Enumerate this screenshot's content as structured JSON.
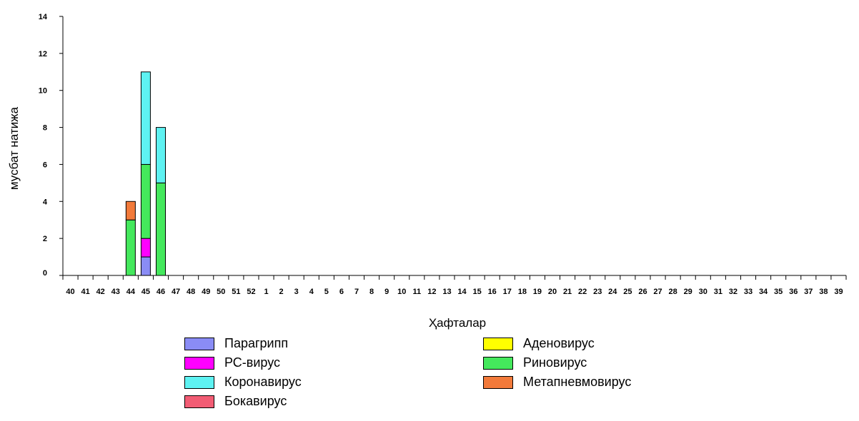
{
  "chart_data": {
    "type": "bar",
    "stacked": true,
    "title": "",
    "xlabel": "Ҳафталар",
    "ylabel": "мусбат натижа",
    "ylim": [
      0,
      14
    ],
    "yticks": [
      "0",
      "2",
      "4",
      "6",
      "8",
      "10",
      "12",
      "14"
    ],
    "grid": false,
    "legend_position": "bottom",
    "categories": [
      "40",
      "41",
      "42",
      "43",
      "44",
      "45",
      "46",
      "47",
      "48",
      "49",
      "50",
      "51",
      "52",
      "1",
      "2",
      "3",
      "4",
      "5",
      "6",
      "7",
      "8",
      "9",
      "10",
      "11",
      "12",
      "13",
      "14",
      "15",
      "16",
      "17",
      "18",
      "19",
      "20",
      "21",
      "22",
      "23",
      "24",
      "25",
      "26",
      "27",
      "28",
      "29",
      "30",
      "31",
      "32",
      "33",
      "34",
      "35",
      "36",
      "37",
      "38",
      "39"
    ],
    "series": [
      {
        "name": "Парагрипп",
        "color": "#8a8cf5",
        "values": [
          0,
          0,
          0,
          0,
          0,
          1,
          0,
          0,
          0,
          0,
          0,
          0,
          0,
          0,
          0,
          0,
          0,
          0,
          0,
          0,
          0,
          0,
          0,
          0,
          0,
          0,
          0,
          0,
          0,
          0,
          0,
          0,
          0,
          0,
          0,
          0,
          0,
          0,
          0,
          0,
          0,
          0,
          0,
          0,
          0,
          0,
          0,
          0,
          0,
          0,
          0,
          0
        ]
      },
      {
        "name": "РС-вирус",
        "color": "#ff00ff",
        "values": [
          0,
          0,
          0,
          0,
          0,
          1,
          0,
          0,
          0,
          0,
          0,
          0,
          0,
          0,
          0,
          0,
          0,
          0,
          0,
          0,
          0,
          0,
          0,
          0,
          0,
          0,
          0,
          0,
          0,
          0,
          0,
          0,
          0,
          0,
          0,
          0,
          0,
          0,
          0,
          0,
          0,
          0,
          0,
          0,
          0,
          0,
          0,
          0,
          0,
          0,
          0,
          0
        ]
      },
      {
        "name": "Коронавирус",
        "color": "#5ef2f2",
        "values": [
          0,
          0,
          0,
          0,
          0,
          5,
          3,
          0,
          0,
          0,
          0,
          0,
          0,
          0,
          0,
          0,
          0,
          0,
          0,
          0,
          0,
          0,
          0,
          0,
          0,
          0,
          0,
          0,
          0,
          0,
          0,
          0,
          0,
          0,
          0,
          0,
          0,
          0,
          0,
          0,
          0,
          0,
          0,
          0,
          0,
          0,
          0,
          0,
          0,
          0,
          0,
          0
        ]
      },
      {
        "name": "Бокавирус",
        "color": "#f25c74",
        "values": [
          0,
          0,
          0,
          0,
          0,
          0,
          0,
          0,
          0,
          0,
          0,
          0,
          0,
          0,
          0,
          0,
          0,
          0,
          0,
          0,
          0,
          0,
          0,
          0,
          0,
          0,
          0,
          0,
          0,
          0,
          0,
          0,
          0,
          0,
          0,
          0,
          0,
          0,
          0,
          0,
          0,
          0,
          0,
          0,
          0,
          0,
          0,
          0,
          0,
          0,
          0,
          0
        ]
      },
      {
        "name": "Аденовирус",
        "color": "#ffff00",
        "values": [
          0,
          0,
          0,
          0,
          0,
          0,
          0,
          0,
          0,
          0,
          0,
          0,
          0,
          0,
          0,
          0,
          0,
          0,
          0,
          0,
          0,
          0,
          0,
          0,
          0,
          0,
          0,
          0,
          0,
          0,
          0,
          0,
          0,
          0,
          0,
          0,
          0,
          0,
          0,
          0,
          0,
          0,
          0,
          0,
          0,
          0,
          0,
          0,
          0,
          0,
          0,
          0
        ]
      },
      {
        "name": "Риновирус",
        "color": "#44e85c",
        "values": [
          0,
          0,
          0,
          0,
          3,
          4,
          5,
          0,
          0,
          0,
          0,
          0,
          0,
          0,
          0,
          0,
          0,
          0,
          0,
          0,
          0,
          0,
          0,
          0,
          0,
          0,
          0,
          0,
          0,
          0,
          0,
          0,
          0,
          0,
          0,
          0,
          0,
          0,
          0,
          0,
          0,
          0,
          0,
          0,
          0,
          0,
          0,
          0,
          0,
          0,
          0,
          0
        ]
      },
      {
        "name": "Метапневмовирус",
        "color": "#f27a3a",
        "values": [
          0,
          0,
          0,
          0,
          1,
          0,
          0,
          0,
          0,
          0,
          0,
          0,
          0,
          0,
          0,
          0,
          0,
          0,
          0,
          0,
          0,
          0,
          0,
          0,
          0,
          0,
          0,
          0,
          0,
          0,
          0,
          0,
          0,
          0,
          0,
          0,
          0,
          0,
          0,
          0,
          0,
          0,
          0,
          0,
          0,
          0,
          0,
          0,
          0,
          0,
          0,
          0
        ]
      }
    ],
    "stack_order": [
      "Парагрипп",
      "РС-вирус",
      "Риновирус",
      "Коронавирус",
      "Метапневмовирус",
      "Бокавирус",
      "Аденовирус"
    ],
    "legend_layout": [
      [
        "Парагрипп",
        "РС-вирус",
        "Коронавирус",
        "Бокавирус"
      ],
      [
        "Аденовирус",
        "Риновирус",
        "Метапневмовирус"
      ]
    ]
  }
}
